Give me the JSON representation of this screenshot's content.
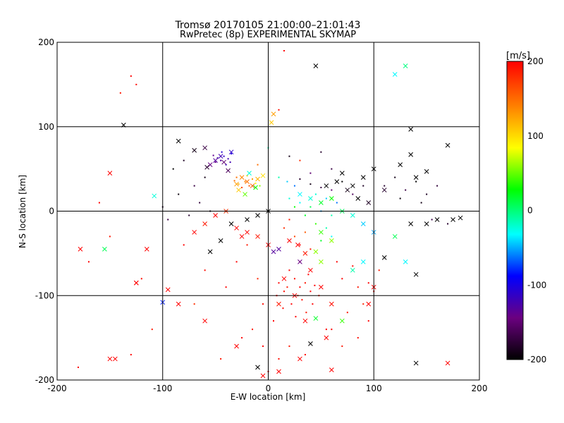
{
  "chart_data": {
    "type": "scatter",
    "title": "Tromsø 20170105 21:00:00–21:01:43",
    "subtitle": "RwPretec (8p) EXPERIMENTAL SKYMAP",
    "xlabel": "E-W location [km]",
    "ylabel": "N-S location [km]",
    "xlim": [
      -200,
      200
    ],
    "ylim": [
      -200,
      200
    ],
    "xticks": [
      -200,
      -100,
      0,
      100,
      200
    ],
    "yticks": [
      -200,
      -100,
      0,
      100,
      200
    ],
    "grid": true,
    "colorbar": {
      "label": "[m/s]",
      "range": [
        -200,
        200
      ],
      "ticks": [
        200,
        100,
        0,
        -100,
        -200
      ],
      "colormap": [
        "#000000",
        "#6b0080",
        "#0000ff",
        "#00ffff",
        "#00ff00",
        "#ffff00",
        "#ff8000",
        "#ff0000"
      ]
    },
    "points_dots": [
      [
        -38,
        62,
        -120
      ],
      [
        -42,
        65,
        -110
      ],
      [
        -45,
        60,
        -130
      ],
      [
        -50,
        58,
        -140
      ],
      [
        -35,
        68,
        -100
      ],
      [
        -48,
        63,
        -125
      ],
      [
        -40,
        55,
        -115
      ],
      [
        -52,
        66,
        -135
      ],
      [
        -44,
        70,
        -105
      ],
      [
        -36,
        58,
        -120
      ],
      [
        -30,
        40,
        150
      ],
      [
        -22,
        35,
        140
      ],
      [
        -18,
        30,
        160
      ],
      [
        -28,
        32,
        120
      ],
      [
        -15,
        38,
        130
      ],
      [
        -25,
        28,
        170
      ],
      [
        -20,
        42,
        110
      ],
      [
        -12,
        33,
        90
      ],
      [
        -32,
        36,
        150
      ],
      [
        -8,
        30,
        60
      ],
      [
        10,
        40,
        -10
      ],
      [
        18,
        35,
        -40
      ],
      [
        25,
        30,
        -60
      ],
      [
        30,
        38,
        -180
      ],
      [
        40,
        32,
        -190
      ],
      [
        50,
        28,
        -170
      ],
      [
        60,
        25,
        -150
      ],
      [
        70,
        35,
        -200
      ],
      [
        80,
        20,
        -160
      ],
      [
        90,
        30,
        -185
      ],
      [
        20,
        15,
        -20
      ],
      [
        30,
        10,
        -30
      ],
      [
        40,
        5,
        10
      ],
      [
        50,
        0,
        -50
      ],
      [
        60,
        -5,
        -10
      ],
      [
        45,
        20,
        -20
      ],
      [
        55,
        15,
        -40
      ],
      [
        65,
        10,
        -60
      ],
      [
        35,
        -5,
        20
      ],
      [
        25,
        5,
        30
      ],
      [
        15,
        -20,
        180
      ],
      [
        25,
        -30,
        170
      ],
      [
        35,
        -25,
        160
      ],
      [
        45,
        -15,
        40
      ],
      [
        55,
        -20,
        -10
      ],
      [
        20,
        -10,
        190
      ],
      [
        30,
        -40,
        200
      ],
      [
        40,
        -45,
        190
      ],
      [
        50,
        -35,
        20
      ],
      [
        60,
        -30,
        -30
      ],
      [
        20,
        -70,
        200
      ],
      [
        25,
        -80,
        195
      ],
      [
        30,
        -90,
        200
      ],
      [
        35,
        -85,
        190
      ],
      [
        40,
        -95,
        200
      ],
      [
        28,
        -100,
        185
      ],
      [
        22,
        -110,
        200
      ],
      [
        32,
        -105,
        195
      ],
      [
        38,
        -75,
        200
      ],
      [
        18,
        -90,
        190
      ],
      [
        10,
        -85,
        200
      ],
      [
        15,
        -95,
        195
      ],
      [
        42,
        -110,
        200
      ],
      [
        36,
        -120,
        190
      ],
      [
        26,
        -125,
        200
      ],
      [
        14,
        -115,
        195
      ],
      [
        8,
        -100,
        200
      ],
      [
        44,
        -88,
        200
      ],
      [
        48,
        -100,
        190
      ],
      [
        30,
        -60,
        200
      ],
      [
        -20,
        -40,
        190
      ],
      [
        -30,
        -60,
        200
      ],
      [
        -10,
        -80,
        185
      ],
      [
        -5,
        -110,
        195
      ],
      [
        5,
        -130,
        200
      ],
      [
        -15,
        -140,
        190
      ],
      [
        -40,
        -90,
        200
      ],
      [
        -60,
        -70,
        195
      ],
      [
        -70,
        -110,
        180
      ],
      [
        -80,
        -40,
        200
      ],
      [
        70,
        -80,
        200
      ],
      [
        85,
        -90,
        190
      ],
      [
        95,
        -85,
        200
      ],
      [
        100,
        -95,
        195
      ],
      [
        75,
        -120,
        190
      ],
      [
        60,
        -140,
        200
      ],
      [
        90,
        -110,
        185
      ],
      [
        105,
        -70,
        190
      ],
      [
        65,
        -60,
        200
      ],
      [
        80,
        -65,
        195
      ],
      [
        110,
        30,
        -180
      ],
      [
        120,
        40,
        -190
      ],
      [
        130,
        25,
        -170
      ],
      [
        140,
        35,
        -200
      ],
      [
        150,
        20,
        -185
      ],
      [
        160,
        30,
        -175
      ],
      [
        145,
        10,
        -190
      ],
      [
        125,
        15,
        -195
      ],
      [
        170,
        -15,
        -180
      ],
      [
        155,
        -10,
        -170
      ],
      [
        -60,
        40,
        -190
      ],
      [
        -70,
        30,
        -170
      ],
      [
        -80,
        60,
        -185
      ],
      [
        -90,
        50,
        -200
      ],
      [
        -65,
        10,
        -175
      ],
      [
        -55,
        0,
        -190
      ],
      [
        -75,
        -5,
        -180
      ],
      [
        -85,
        20,
        -195
      ],
      [
        -95,
        -10,
        -170
      ],
      [
        -100,
        5,
        -185
      ],
      [
        -130,
        160,
        200
      ],
      [
        -125,
        150,
        195
      ],
      [
        -140,
        140,
        190
      ],
      [
        -160,
        10,
        200
      ],
      [
        -150,
        -30,
        190
      ],
      [
        -170,
        -60,
        200
      ],
      [
        -120,
        -80,
        195
      ],
      [
        -110,
        -140,
        190
      ],
      [
        -130,
        -170,
        200
      ],
      [
        -180,
        -185,
        200
      ],
      [
        15,
        190,
        200
      ],
      [
        10,
        120,
        195
      ],
      [
        30,
        60,
        180
      ],
      [
        50,
        70,
        -180
      ],
      [
        60,
        50,
        -170
      ],
      [
        20,
        65,
        -190
      ],
      [
        -10,
        55,
        150
      ],
      [
        0,
        75,
        -10
      ],
      [
        40,
        45,
        -150
      ],
      [
        55,
        -140,
        200
      ],
      [
        70,
        -160,
        190
      ],
      [
        85,
        -150,
        195
      ],
      [
        95,
        -130,
        200
      ],
      [
        10,
        -175,
        195
      ],
      [
        0,
        -190,
        200
      ],
      [
        20,
        -160,
        190
      ],
      [
        35,
        -170,
        195
      ],
      [
        -25,
        -150,
        200
      ],
      [
        -45,
        -175,
        190
      ],
      [
        -5,
        -160,
        200
      ]
    ],
    "points_crosses": [
      [
        -50,
        60,
        -130
      ],
      [
        -45,
        65,
        -120
      ],
      [
        -35,
        70,
        -110
      ],
      [
        -55,
        55,
        -140
      ],
      [
        -42,
        58,
        -150
      ],
      [
        -38,
        48,
        -160
      ],
      [
        -60,
        75,
        -170
      ],
      [
        -85,
        83,
        -200
      ],
      [
        -70,
        72,
        -190
      ],
      [
        -58,
        52,
        -180
      ],
      [
        -20,
        35,
        150
      ],
      [
        -15,
        30,
        160
      ],
      [
        -25,
        40,
        140
      ],
      [
        -30,
        32,
        130
      ],
      [
        -10,
        38,
        120
      ],
      [
        -5,
        42,
        100
      ],
      [
        -28,
        25,
        110
      ],
      [
        -18,
        45,
        -20
      ],
      [
        -12,
        28,
        30
      ],
      [
        -22,
        20,
        50
      ],
      [
        45,
        172,
        -200
      ],
      [
        120,
        162,
        -30
      ],
      [
        130,
        172,
        0
      ],
      [
        -137,
        102,
        -200
      ],
      [
        -150,
        45,
        200
      ],
      [
        -108,
        18,
        -20
      ],
      [
        -178,
        -45,
        200
      ],
      [
        -155,
        -45,
        10
      ],
      [
        -115,
        -45,
        200
      ],
      [
        -125,
        -85,
        200
      ],
      [
        -100,
        -108,
        -80
      ],
      [
        -95,
        -93,
        200
      ],
      [
        -145,
        -175,
        200
      ],
      [
        5,
        115,
        130
      ],
      [
        3,
        105,
        110
      ],
      [
        135,
        97,
        -200
      ],
      [
        170,
        78,
        -200
      ],
      [
        135,
        67,
        -200
      ],
      [
        125,
        55,
        -200
      ],
      [
        140,
        40,
        -200
      ],
      [
        150,
        47,
        -200
      ],
      [
        175,
        -10,
        -200
      ],
      [
        182,
        -8,
        -200
      ],
      [
        150,
        -15,
        -200
      ],
      [
        160,
        -10,
        -200
      ],
      [
        135,
        -15,
        -200
      ],
      [
        110,
        -55,
        -200
      ],
      [
        140,
        -75,
        -200
      ],
      [
        130,
        -60,
        -30
      ],
      [
        120,
        -30,
        10
      ],
      [
        -55,
        -48,
        -200
      ],
      [
        -45,
        -35,
        -200
      ],
      [
        -35,
        -15,
        -200
      ],
      [
        -20,
        -10,
        -200
      ],
      [
        -10,
        -5,
        -200
      ],
      [
        0,
        0,
        -200
      ],
      [
        40,
        -157,
        -200
      ],
      [
        140,
        -180,
        -200
      ],
      [
        -10,
        -185,
        -200
      ],
      [
        170,
        -180,
        200
      ],
      [
        -125,
        -85,
        200
      ],
      [
        -150,
        -175,
        200
      ],
      [
        45,
        -127,
        20
      ],
      [
        70,
        -130,
        40
      ],
      [
        30,
        -60,
        -140
      ],
      [
        5,
        -48,
        -130
      ],
      [
        45,
        -48,
        60
      ],
      [
        50,
        -60,
        60
      ],
      [
        90,
        -60,
        -30
      ],
      [
        80,
        -70,
        -10
      ],
      [
        20,
        -35,
        200
      ],
      [
        28,
        -40,
        200
      ],
      [
        35,
        -50,
        190
      ],
      [
        40,
        -70,
        200
      ],
      [
        15,
        -80,
        200
      ],
      [
        25,
        -100,
        200
      ],
      [
        10,
        -110,
        190
      ],
      [
        50,
        -90,
        200
      ],
      [
        60,
        -110,
        195
      ],
      [
        35,
        -130,
        200
      ],
      [
        100,
        -90,
        200
      ],
      [
        95,
        -110,
        200
      ],
      [
        55,
        -150,
        200
      ],
      [
        60,
        -188,
        200
      ],
      [
        10,
        -190,
        200
      ],
      [
        -5,
        -195,
        200
      ],
      [
        30,
        -175,
        200
      ],
      [
        -30,
        -160,
        200
      ],
      [
        -60,
        -130,
        200
      ],
      [
        -85,
        -110,
        200
      ],
      [
        -70,
        -25,
        200
      ],
      [
        -60,
        -15,
        190
      ],
      [
        -50,
        -5,
        200
      ],
      [
        -40,
        0,
        180
      ],
      [
        -30,
        -20,
        200
      ],
      [
        -20,
        -25,
        200
      ],
      [
        -10,
        -30,
        190
      ],
      [
        0,
        -40,
        200
      ],
      [
        10,
        -45,
        -130
      ],
      [
        -25,
        -30,
        200
      ],
      [
        80,
        30,
        -200
      ],
      [
        90,
        40,
        -200
      ],
      [
        100,
        50,
        -200
      ],
      [
        110,
        25,
        -180
      ],
      [
        70,
        45,
        -200
      ],
      [
        65,
        35,
        -200
      ],
      [
        55,
        30,
        -200
      ],
      [
        75,
        25,
        -190
      ],
      [
        85,
        15,
        -200
      ],
      [
        95,
        10,
        -185
      ],
      [
        60,
        15,
        30
      ],
      [
        50,
        10,
        20
      ],
      [
        40,
        15,
        -20
      ],
      [
        30,
        20,
        -30
      ],
      [
        70,
        0,
        10
      ],
      [
        80,
        -5,
        -20
      ],
      [
        90,
        -15,
        -40
      ],
      [
        100,
        -25,
        -50
      ],
      [
        50,
        -25,
        40
      ],
      [
        60,
        -35,
        60
      ]
    ]
  }
}
